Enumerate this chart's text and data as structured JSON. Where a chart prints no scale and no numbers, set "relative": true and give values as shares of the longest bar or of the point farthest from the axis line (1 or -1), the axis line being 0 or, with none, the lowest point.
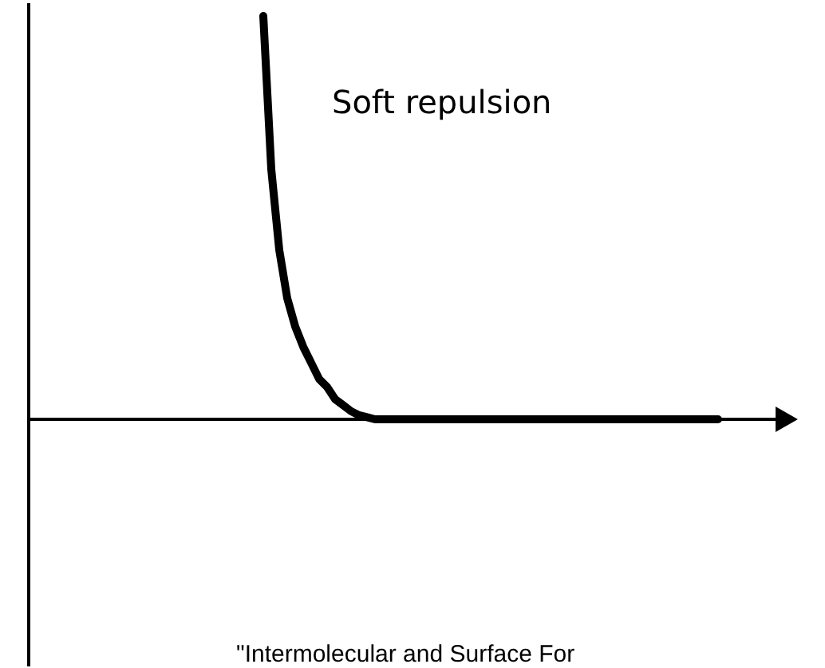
{
  "chart_data": {
    "type": "line",
    "relative": true,
    "annotations": [
      "Soft repulsion",
      "\"Intermolecular and Surface For"
    ],
    "categories": [
      null,
      null,
      null,
      null,
      null,
      null,
      null,
      null,
      null,
      null,
      null,
      null,
      null,
      null,
      null,
      null,
      null,
      null,
      null,
      null,
      null,
      null,
      null,
      null,
      null,
      null,
      null,
      null,
      null,
      null,
      null,
      null,
      null,
      null,
      null,
      null,
      null,
      null,
      null,
      null,
      null,
      null,
      null,
      null,
      null,
      null,
      null,
      null,
      null,
      null,
      null,
      null,
      null,
      null,
      null,
      null,
      null,
      null
    ],
    "series": [
      {
        "color": "#000000",
        "values": [
          1.0,
          0.62,
          0.42,
          0.3,
          0.23,
          0.18,
          0.14,
          0.1,
          0.08,
          0.05,
          0.035,
          0.02,
          0.01,
          0.005,
          0,
          0,
          0,
          0,
          0,
          0,
          0,
          0,
          0,
          0,
          0,
          0,
          0,
          0,
          0,
          0,
          0,
          0,
          0,
          0,
          0,
          0,
          0,
          0,
          0,
          0,
          0,
          0,
          0,
          0,
          0,
          0,
          0,
          0,
          0,
          0,
          0,
          0,
          0,
          0,
          0,
          0,
          0,
          0
        ]
      }
    ],
    "marker": "none",
    "line_style": "solid"
  }
}
